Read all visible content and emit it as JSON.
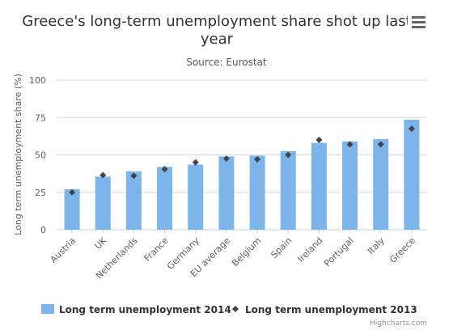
{
  "chart_data": {
    "type": "bar",
    "title_lines": [
      "Greece's long-term unemployment share shot up last",
      "year"
    ],
    "subtitle": "Source: Eurostat",
    "ylabel": "Long term unemployment share (%)",
    "ylim": [
      0,
      100
    ],
    "yticks": [
      0,
      25,
      50,
      75,
      100
    ],
    "categories": [
      "Austria",
      "UK",
      "Netherlands",
      "France",
      "Germany",
      "EU average",
      "Belgium",
      "Spain",
      "Ireland",
      "Portugal",
      "Italy",
      "Greece"
    ],
    "series": [
      {
        "name": "Long term unemployment 2014",
        "kind": "column",
        "color": "#7cb5ec",
        "values": [
          27,
          35.5,
          39,
          42,
          43.5,
          49,
          49.5,
          52.5,
          58,
          59,
          60.5,
          73.5
        ]
      },
      {
        "name": "Long term unemployment 2013",
        "kind": "marker",
        "color": "#434348",
        "values": [
          25,
          36.5,
          36,
          40.5,
          45,
          47.5,
          47,
          50,
          60,
          57,
          57,
          67.5
        ]
      }
    ],
    "grid": true,
    "legend_position": "bottom"
  },
  "menu_icon": "hamburger-menu-icon",
  "credits": "Highcharts.com"
}
